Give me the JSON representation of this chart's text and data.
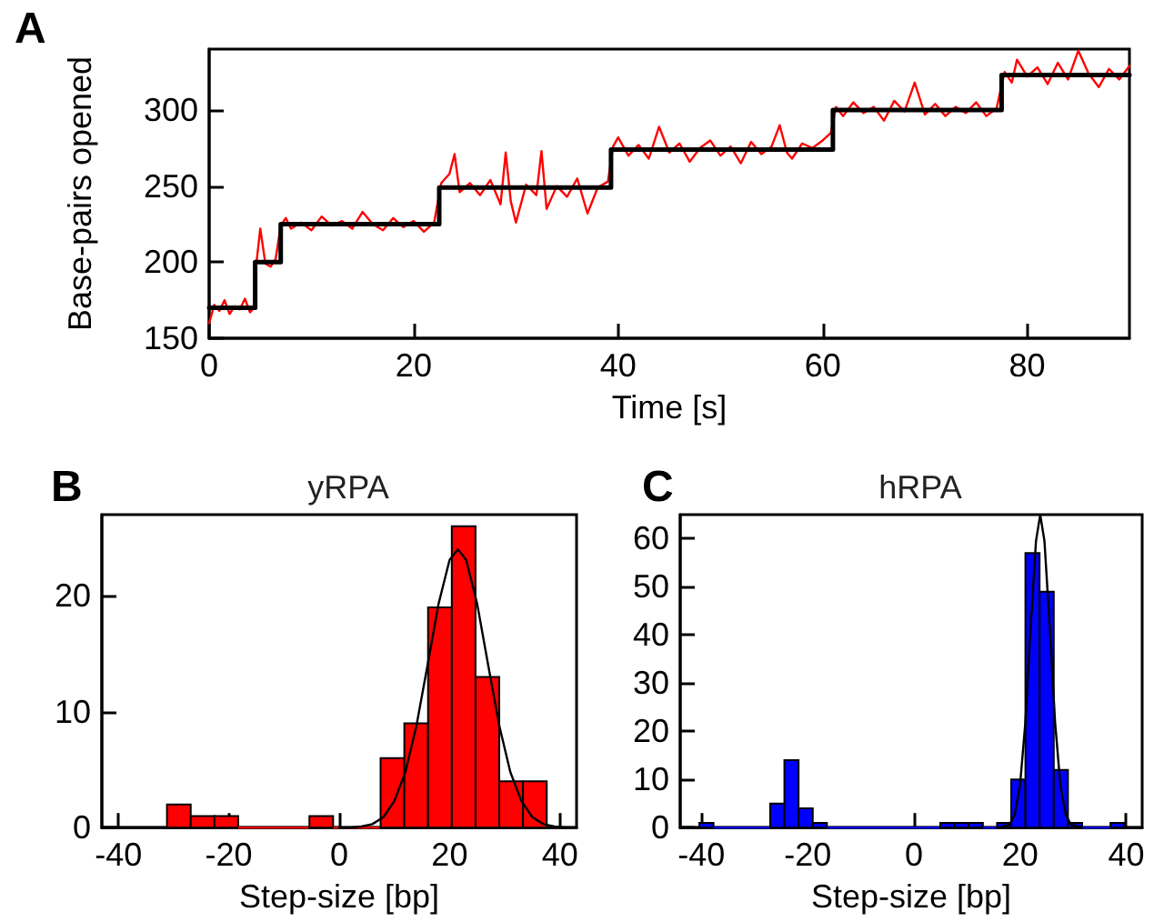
{
  "chart_data": [
    {
      "type": "line",
      "xlabel": "Time [s]",
      "ylabel": "Base-pairs opened",
      "annotations": [
        "A"
      ],
      "xlim": [
        0,
        90
      ],
      "ylim": [
        150,
        340
      ],
      "xticks": [
        0,
        20,
        40,
        60,
        80
      ],
      "yticks": [
        150,
        200,
        250,
        300
      ],
      "grid": false,
      "marker": "none",
      "line_style": "solid",
      "series": [
        {
          "color": "#ff0000",
          "x": [
            0,
            0.5,
            1,
            1.5,
            2,
            2.5,
            3,
            3.5,
            4,
            4.4,
            4.6,
            5,
            5.5,
            6,
            6.5,
            7,
            7.5,
            8,
            9,
            10,
            11,
            12,
            13,
            14,
            15,
            16,
            17,
            18,
            19,
            20,
            21,
            22,
            22.7,
            23.5,
            24,
            24.5,
            25.5,
            26.5,
            27.5,
            28.5,
            29,
            29.5,
            30,
            31,
            32,
            32.5,
            33,
            34,
            35,
            36,
            37,
            38,
            39,
            39.5,
            40,
            41,
            42,
            43,
            44,
            45,
            46,
            47,
            48,
            49,
            50,
            51,
            52,
            53,
            54,
            55,
            55.8,
            56.5,
            57,
            58,
            59,
            60,
            60.8,
            61.3,
            62,
            63,
            64,
            65,
            66,
            67,
            68,
            69,
            70,
            71,
            72,
            73,
            74,
            75,
            76,
            77,
            77.8,
            78.5,
            79,
            80,
            81,
            82,
            83,
            84,
            85,
            86,
            87,
            88,
            89,
            90
          ],
          "values": [
            160,
            172,
            168,
            175,
            166,
            171,
            169,
            176,
            167,
            170,
            198,
            222,
            199,
            197,
            202,
            224,
            229,
            222,
            226,
            221,
            230,
            224,
            227,
            222,
            233,
            225,
            221,
            229,
            223,
            227,
            220,
            226,
            252,
            258,
            271,
            246,
            252,
            244,
            254,
            238,
            272,
            240,
            226,
            251,
            244,
            273,
            235,
            250,
            243,
            255,
            232,
            249,
            253,
            276,
            282,
            270,
            277,
            268,
            289,
            272,
            278,
            266,
            275,
            280,
            270,
            276,
            265,
            279,
            271,
            276,
            290,
            272,
            268,
            278,
            275,
            280,
            285,
            302,
            296,
            305,
            298,
            302,
            293,
            306,
            299,
            318,
            297,
            304,
            296,
            302,
            298,
            305,
            296,
            301,
            325,
            318,
            333,
            322,
            328,
            317,
            331,
            320,
            339,
            324,
            315,
            327,
            320,
            329
          ]
        },
        {
          "type": "step",
          "color": "#000000",
          "x": [
            0,
            4.5,
            7,
            22.5,
            39.3,
            61,
            77.5,
            90
          ],
          "values": [
            170,
            200,
            225,
            249,
            274,
            300,
            323,
            323
          ]
        }
      ]
    },
    {
      "type": "histogram",
      "title": "yRPA",
      "xlabel": "Step-size [bp]",
      "annotations": [
        "B"
      ],
      "xlim": [
        -43,
        43
      ],
      "ylim": [
        0,
        27
      ],
      "xticks": [
        -40,
        -20,
        0,
        20,
        40
      ],
      "yticks": [
        0,
        10,
        20
      ],
      "grid": false,
      "marker": "none",
      "color": "#ff0000",
      "bins": [
        -31.2,
        -26.9,
        -22.6,
        -18.3,
        -14,
        -9.7,
        -5.4,
        -1.1,
        3.2,
        7.5,
        11.8,
        16.1,
        20.4,
        24.7,
        29,
        33.3,
        37.6
      ],
      "values": [
        2,
        1,
        1,
        0,
        0,
        0,
        1,
        0,
        0,
        6,
        9,
        19,
        26,
        13,
        4,
        4
      ],
      "series": [
        {
          "type": "line",
          "color": "#000000",
          "x": [
            0,
            2,
            4,
            6,
            8,
            10,
            12,
            14,
            16,
            18,
            20,
            21.5,
            23,
            25,
            27,
            29,
            31,
            33,
            35,
            37,
            39,
            41
          ],
          "values": [
            0,
            0,
            0.1,
            0.3,
            0.9,
            2.3,
            4.8,
            8.8,
            14,
            19.3,
            23.1,
            24,
            23.1,
            19.3,
            14,
            8.8,
            4.8,
            2.3,
            0.9,
            0.3,
            0.1,
            0
          ]
        }
      ]
    },
    {
      "type": "histogram",
      "title": "hRPA",
      "xlabel": "Step-size [bp]",
      "annotations": [
        "C"
      ],
      "xlim": [
        -44,
        43
      ],
      "ylim": [
        0,
        65
      ],
      "xticks": [
        -40,
        -20,
        0,
        20,
        40
      ],
      "yticks": [
        0,
        10,
        20,
        30,
        40,
        50,
        60
      ],
      "grid": false,
      "marker": "none",
      "color": "#0000ff",
      "bins": [
        -40.4,
        -37.73,
        -35.06,
        -32.39,
        -29.72,
        -27.05,
        -24.38,
        -21.71,
        -19.04,
        -16.37,
        -13.7,
        -11.03,
        -8.36,
        -5.69,
        -3.02,
        -0.35,
        2.32,
        4.99,
        7.66,
        10.33,
        13.0,
        15.67,
        18.34,
        21.01,
        23.68,
        26.35,
        29.02,
        31.69,
        34.36,
        37.03,
        39.7
      ],
      "values": [
        1,
        0,
        0,
        0,
        0,
        5,
        14,
        4,
        1,
        0,
        0,
        0,
        0,
        0,
        0,
        0,
        0,
        1,
        1,
        1,
        0,
        1,
        10,
        57,
        49,
        12,
        1,
        0,
        0,
        1
      ],
      "series": [
        {
          "type": "line",
          "color": "#000000",
          "x": [
            16,
            18,
            19,
            20,
            21,
            22,
            23,
            23.8,
            24.6,
            25.6,
            26.6,
            27.6,
            28.6,
            29.6,
            31.6
          ],
          "values": [
            0,
            0.6,
            2.7,
            8.8,
            21.9,
            41.5,
            59.5,
            65,
            59.5,
            41.5,
            21.9,
            8.8,
            2.7,
            0.6,
            0
          ]
        }
      ]
    }
  ]
}
